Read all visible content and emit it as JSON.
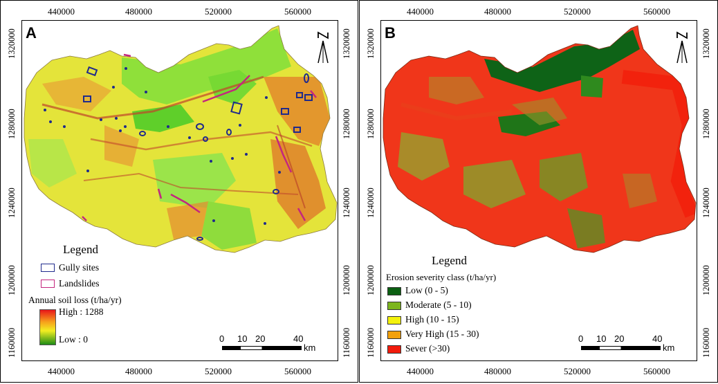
{
  "axes": {
    "x_ticks": [
      "440000",
      "480000",
      "520000",
      "560000"
    ],
    "y_ticks": [
      "1320000",
      "1280000",
      "1240000",
      "1200000",
      "1160000"
    ]
  },
  "panel_a": {
    "letter": "A",
    "legend_title": "Legend",
    "gully_label": "Gully sites",
    "landslide_label": "Landslides",
    "ramp_title": "Annual soil loss (t/ha/yr)",
    "high_label": "High : 1288",
    "low_label": "Low : 0",
    "colors": {
      "gully": "#1f2a8c",
      "landslide": "#c4267e"
    }
  },
  "panel_b": {
    "letter": "B",
    "legend_title": "Legend",
    "class_title": "Erosion severity class (t/ha/yr)",
    "classes": [
      {
        "label": "Low (0 - 5)",
        "color": "#0b5f12"
      },
      {
        "label": "Moderate (5 - 10)",
        "color": "#7cb51e"
      },
      {
        "label": "High (10 - 15)",
        "color": "#f4f20c"
      },
      {
        "label": "Very High (15 - 30)",
        "color": "#f3a10b"
      },
      {
        "label": "Sever (>30)",
        "color": "#f21b0c"
      }
    ]
  },
  "scale_bar": {
    "labels": [
      "0",
      "10",
      "20",
      "40"
    ],
    "unit": "km"
  },
  "north_arrow": "north-arrow-icon"
}
